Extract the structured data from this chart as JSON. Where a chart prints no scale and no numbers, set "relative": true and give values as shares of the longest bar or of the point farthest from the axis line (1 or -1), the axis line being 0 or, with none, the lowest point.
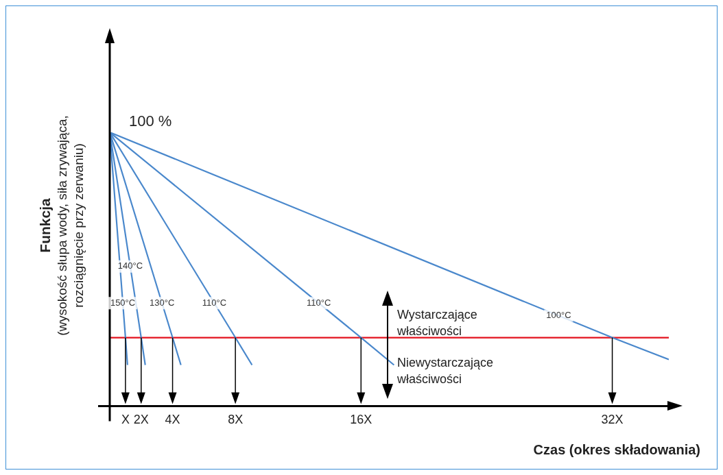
{
  "chart_data": {
    "type": "line",
    "relative": true,
    "xlabel": "Czas (okres składowania)",
    "ylabel": "Funkcja (wysokość słupa wody, siła zrywająca, rozciągnięcie przy zerwaniu)",
    "xlim": [
      0,
      35.6
    ],
    "xticks": [
      {
        "value": 1,
        "label": "X"
      },
      {
        "value": 2,
        "label": "2X"
      },
      {
        "value": 4,
        "label": "4X"
      },
      {
        "value": 8,
        "label": "8X"
      },
      {
        "value": 16,
        "label": "16X"
      },
      {
        "value": 32,
        "label": "32X"
      }
    ],
    "series": [
      {
        "name": "150°C",
        "color": "#4a88cc",
        "x": [
          0,
          1,
          1.13
        ],
        "values": [
          1,
          0.25,
          0.15
        ]
      },
      {
        "name": "140°C",
        "color": "#4a88cc",
        "x": [
          0,
          2,
          2.26
        ],
        "values": [
          1,
          0.25,
          0.15
        ]
      },
      {
        "name": "130°C",
        "color": "#4a88cc",
        "x": [
          0,
          4,
          4.53
        ],
        "values": [
          1,
          0.25,
          0.15
        ]
      },
      {
        "name": "110°C",
        "color": "#4a88cc",
        "x": [
          0,
          8,
          9.06
        ],
        "values": [
          1,
          0.25,
          0.15
        ]
      },
      {
        "name": "110°C",
        "color": "#4a88cc",
        "x": [
          0,
          16,
          18.1
        ],
        "values": [
          1,
          0.25,
          0.15
        ]
      },
      {
        "name": "100°C",
        "color": "#4a88cc",
        "x": [
          0,
          32,
          35.6
        ],
        "values": [
          1,
          0.25,
          0.17
        ]
      }
    ],
    "ref_lines": [
      {
        "axis": "y",
        "value": 0.25,
        "color": "#e3101d"
      }
    ],
    "annotations": [
      {
        "text": "100 %",
        "x": 0,
        "y": 1
      },
      "Wystarczające właściwości",
      "Niewystarczające właściwości"
    ],
    "legend": false,
    "grid": false,
    "marker": "none",
    "line_style": "solid"
  }
}
